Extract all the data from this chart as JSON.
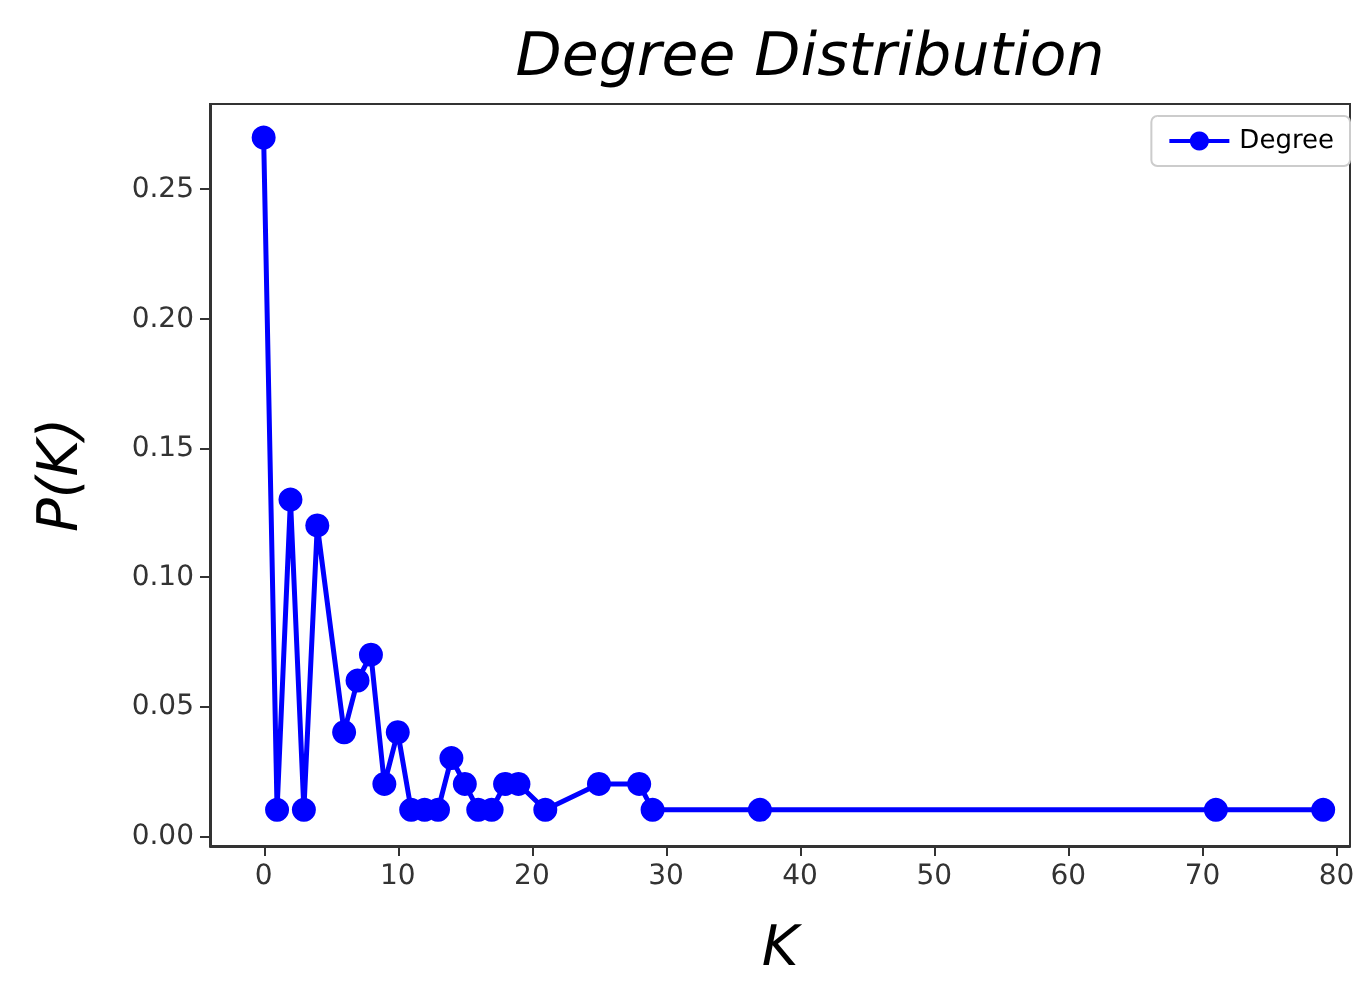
{
  "chart_data": {
    "type": "line",
    "title": "Degree Distribution",
    "xlabel": "K",
    "ylabel": "P(K)",
    "series": [
      {
        "name": "Degree",
        "color": "#0000ff",
        "x": [
          0,
          1,
          2,
          3,
          4,
          6,
          7,
          8,
          9,
          10,
          11,
          12,
          13,
          14,
          15,
          16,
          17,
          18,
          19,
          21,
          25,
          28,
          29,
          37,
          71,
          79
        ],
        "values": [
          0.27,
          0.01,
          0.13,
          0.01,
          0.12,
          0.04,
          0.06,
          0.07,
          0.02,
          0.04,
          0.01,
          0.01,
          0.01,
          0.03,
          0.02,
          0.01,
          0.01,
          0.02,
          0.02,
          0.01,
          0.02,
          0.02,
          0.01,
          0.01,
          0.01,
          0.01
        ]
      }
    ],
    "xlim": [
      -4,
      81
    ],
    "xticks": [
      0,
      10,
      20,
      30,
      40,
      50,
      60,
      70,
      80
    ],
    "ylim": [
      -0.004,
      0.283
    ],
    "yticks": [
      {
        "value": 0,
        "label": "0.00"
      },
      {
        "value": 0.05,
        "label": "0.05"
      },
      {
        "value": 0.1,
        "label": "0.10"
      },
      {
        "value": 0.15,
        "label": "0.15"
      },
      {
        "value": 0.2,
        "label": "0.20"
      },
      {
        "value": 0.25,
        "label": "0.25"
      }
    ],
    "marker": "circle",
    "line_style": "solid",
    "legend": "top right",
    "grid": false
  }
}
